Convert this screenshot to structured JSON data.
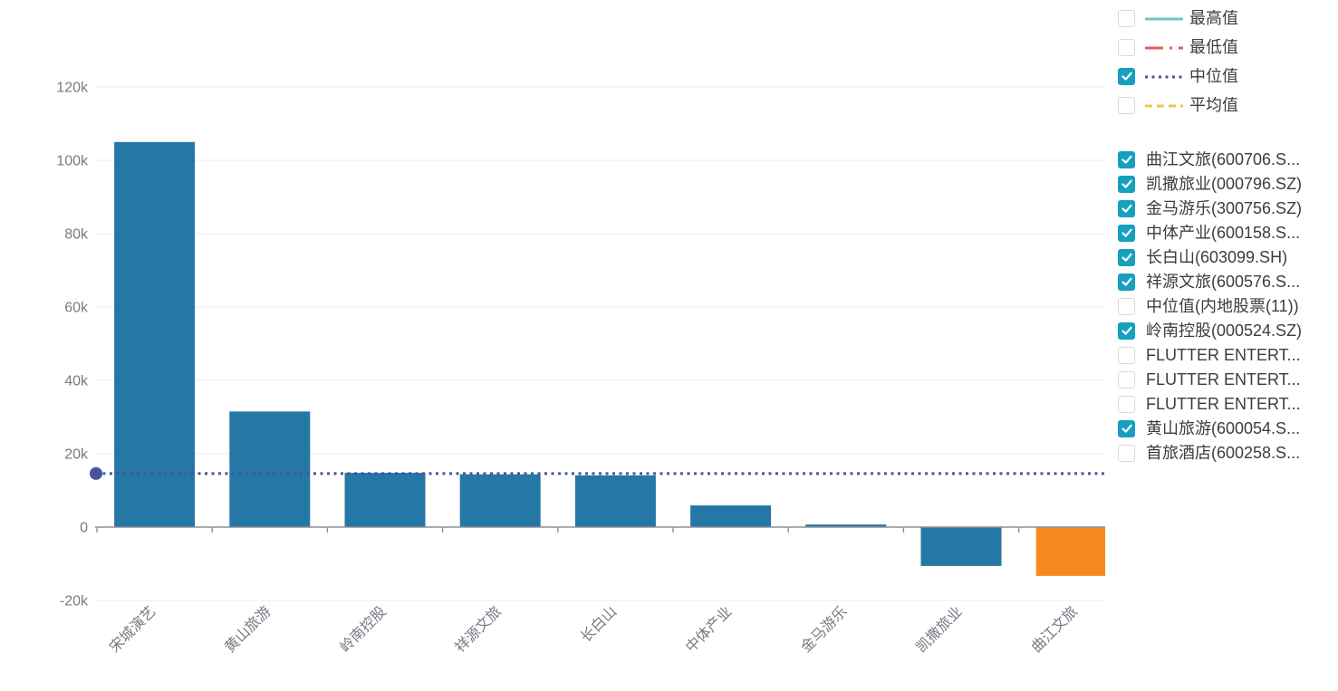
{
  "chart_data": {
    "type": "bar",
    "categories": [
      "宋城演艺",
      "黄山旅游",
      "岭南控股",
      "祥源文旅",
      "长白山",
      "中体产业",
      "金马游乐",
      "凯撒旅业",
      "曲江文旅"
    ],
    "values": [
      105000,
      31500,
      14800,
      14400,
      14100,
      5900,
      700,
      -10600,
      -13300
    ],
    "title": "",
    "xlabel": "",
    "ylabel": "",
    "ylim": [
      -20000,
      124000
    ],
    "y_ticks": [
      {
        "value": -20000,
        "label": "-20k"
      },
      {
        "value": 0,
        "label": "0"
      },
      {
        "value": 20000,
        "label": "20k"
      },
      {
        "value": 40000,
        "label": "40k"
      },
      {
        "value": 60000,
        "label": "60k"
      },
      {
        "value": 80000,
        "label": "80k"
      },
      {
        "value": 100000,
        "label": "100k"
      },
      {
        "value": 120000,
        "label": "120k"
      }
    ],
    "grid": true,
    "legend_position": "right",
    "highlight": {
      "index": 8,
      "color": "#f68a1e"
    },
    "median_line": {
      "label": "中位值",
      "value": 14600,
      "color": "#45549d",
      "style": "dotted"
    }
  },
  "legend": {
    "stats": [
      {
        "label": "最高值",
        "checked": false,
        "line_color": "#6fc9c3",
        "line_style": "solid"
      },
      {
        "label": "最低值",
        "checked": false,
        "line_color": "#e2605e",
        "line_style": "dashdot"
      },
      {
        "label": "中位值",
        "checked": true,
        "line_color": "#45549d",
        "line_style": "dotted"
      },
      {
        "label": "平均值",
        "checked": false,
        "line_color": "#ecc750",
        "line_style": "dashed"
      }
    ],
    "series": [
      {
        "label": "曲江文旅(600706.S...",
        "checked": true
      },
      {
        "label": "凯撒旅业(000796.SZ)",
        "checked": true
      },
      {
        "label": "金马游乐(300756.SZ)",
        "checked": true
      },
      {
        "label": "中体产业(600158.S...",
        "checked": true
      },
      {
        "label": "长白山(603099.SH)",
        "checked": true
      },
      {
        "label": "祥源文旅(600576.S...",
        "checked": true
      },
      {
        "label": "中位值(内地股票(11))",
        "checked": false
      },
      {
        "label": "岭南控股(000524.SZ)",
        "checked": true
      },
      {
        "label": "FLUTTER ENTERT...",
        "checked": false
      },
      {
        "label": "FLUTTER ENTERT...",
        "checked": false
      },
      {
        "label": "FLUTTER ENTERT...",
        "checked": false
      },
      {
        "label": "黄山旅游(600054.S...",
        "checked": true
      },
      {
        "label": "首旅酒店(600258.S...",
        "checked": false
      }
    ]
  },
  "colors": {
    "bar_blue": "#2578a5",
    "bar_orange": "#f68a1e",
    "median": "#45549d",
    "axis_line": "#8c9097",
    "grid_line": "#e6ebf4",
    "tick_label": "#767a83",
    "legend_text": "#3a3d42",
    "checkbox_checked": "#16a0be",
    "checkbox_border": "#d9d9d9"
  }
}
